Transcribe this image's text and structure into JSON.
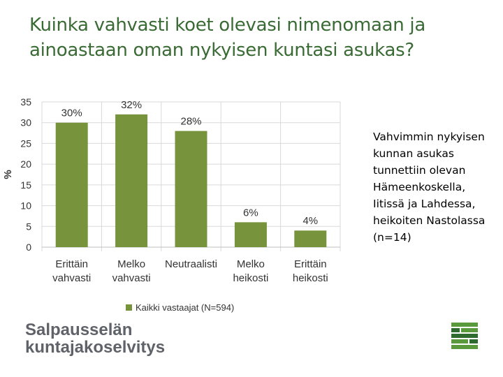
{
  "title": "Kuinka vahvasti koet olevasi nimenomaan ja ainoastaan oman nykyisen kuntasi asukas?",
  "side_note": "Vahvimmin nykyisen kunnan asukas tunnettiin olevan Hämeenkoskella, Iitissä ja Lahdessa, heikoiten Nastolassa (n=14)",
  "logo": {
    "line1": "Salpausselän",
    "line2": "kuntajakoselvitys"
  },
  "colors": {
    "bar": "#77933c",
    "title": "#3a6b35",
    "grid": "#d9d9d9",
    "logo_text": "#5f6369",
    "logo_green": "#5a9a3c",
    "logo_dark": "#2f6b2e"
  },
  "chart_data": {
    "type": "bar",
    "categories": [
      [
        "Erittäin",
        "vahvasti"
      ],
      [
        "Melko",
        "vahvasti"
      ],
      [
        "Neutraalisti"
      ],
      [
        "Melko",
        "heikosti"
      ],
      [
        "Erittäin",
        "heikosti"
      ]
    ],
    "series": [
      {
        "name": "Kaikki vastaajat (N=594)",
        "values": [
          30,
          32,
          28,
          6,
          4
        ]
      }
    ],
    "data_labels": [
      "30%",
      "32%",
      "28%",
      "6%",
      "4%"
    ],
    "ylabel": "%",
    "ylim": [
      0,
      35
    ],
    "yticks": [
      0,
      5,
      10,
      15,
      20,
      25,
      30,
      35
    ],
    "grid": true,
    "legend": "bottom"
  }
}
